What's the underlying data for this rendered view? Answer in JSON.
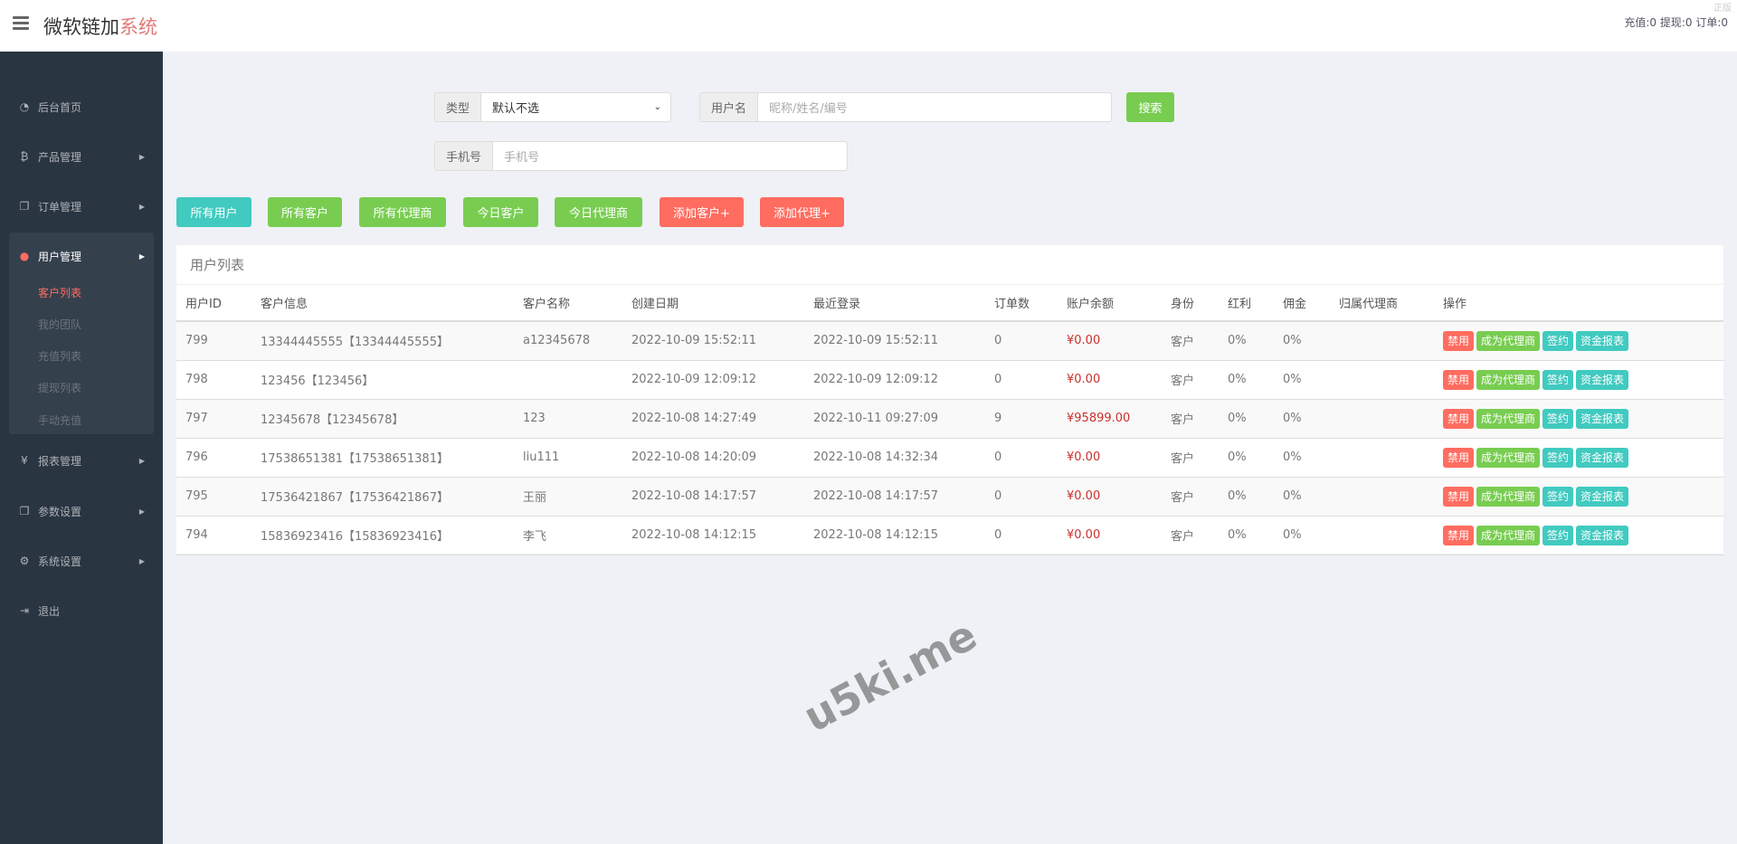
{
  "header": {
    "title": "微软链加",
    "title_accent": "系统",
    "stats": "充值:0 提现:0 订单:0",
    "corner": "正版"
  },
  "sidebar": {
    "items": [
      {
        "label": "后台首页",
        "icon": "dashboard-icon"
      },
      {
        "label": "产品管理",
        "icon": "bitcoin-icon"
      },
      {
        "label": "订单管理",
        "icon": "copy-icon"
      },
      {
        "label": "用户管理",
        "icon": "user-icon"
      },
      {
        "label": "报表管理",
        "icon": "yen-icon"
      },
      {
        "label": "参数设置",
        "icon": "copy-icon"
      },
      {
        "label": "系统设置",
        "icon": "cogs-icon"
      },
      {
        "label": "退出",
        "icon": "sign-out-icon"
      }
    ],
    "sub_items": [
      "客户列表",
      "我的团队",
      "充值列表",
      "提现列表",
      "手动充值"
    ]
  },
  "search": {
    "type_label": "类型",
    "type_value": "默认不选",
    "username_label": "用户名",
    "username_placeholder": "昵称/姓名/编号",
    "search_label": "搜索",
    "phone_label": "手机号",
    "phone_placeholder": "手机号"
  },
  "filters": [
    "所有用户",
    "所有客户",
    "所有代理商",
    "今日客户",
    "今日代理商",
    "添加客户+",
    "添加代理+"
  ],
  "table": {
    "title": "用户列表",
    "columns": [
      "用户ID",
      "客户信息",
      "客户名称",
      "创建日期",
      "最近登录",
      "订单数",
      "账户余额",
      "身份",
      "红利",
      "佣金",
      "归属代理商",
      "操作"
    ],
    "actions": [
      "禁用",
      "成为代理商",
      "签约",
      "资金报表"
    ],
    "rows": [
      [
        "799",
        "13344445555【13344445555】",
        "a12345678",
        "2022-10-09 15:52:11",
        "2022-10-09 15:52:11",
        "0",
        "¥0.00",
        "客户",
        "0%",
        "0%",
        ""
      ],
      [
        "798",
        "123456【123456】",
        "",
        "2022-10-09 12:09:12",
        "2022-10-09 12:09:12",
        "0",
        "¥0.00",
        "客户",
        "0%",
        "0%",
        ""
      ],
      [
        "797",
        "12345678【12345678】",
        "123",
        "2022-10-08 14:27:49",
        "2022-10-11 09:27:09",
        "9",
        "¥95899.00",
        "客户",
        "0%",
        "0%",
        ""
      ],
      [
        "796",
        "17538651381【17538651381】",
        "liu111",
        "2022-10-08 14:20:09",
        "2022-10-08 14:32:34",
        "0",
        "¥0.00",
        "客户",
        "0%",
        "0%",
        ""
      ],
      [
        "795",
        "17536421867【17536421867】",
        "王丽",
        "2022-10-08 14:17:57",
        "2022-10-08 14:17:57",
        "0",
        "¥0.00",
        "客户",
        "0%",
        "0%",
        ""
      ],
      [
        "794",
        "15836923416【15836923416】",
        "李飞",
        "2022-10-08 14:12:15",
        "2022-10-08 14:12:15",
        "0",
        "¥0.00",
        "客户",
        "0%",
        "0%",
        ""
      ]
    ]
  },
  "watermark": "u5ki.me"
}
